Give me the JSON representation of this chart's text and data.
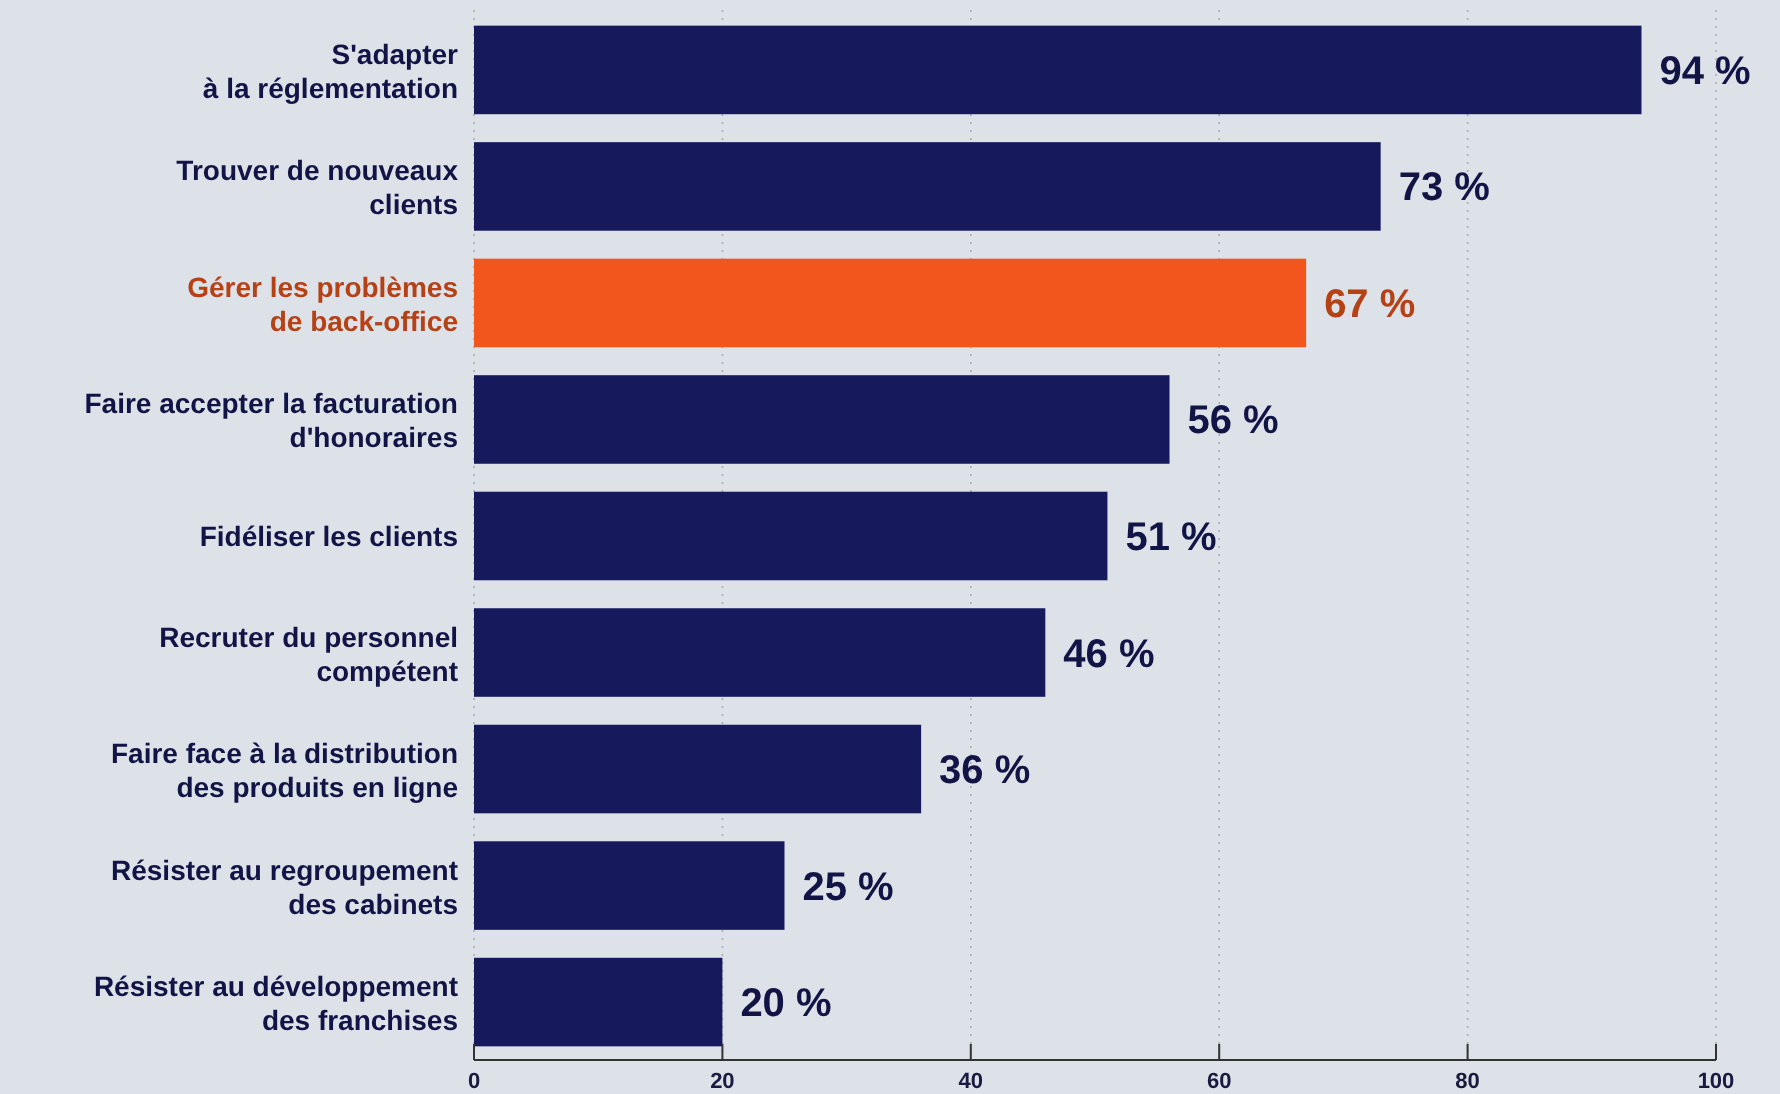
{
  "chart_data": {
    "type": "bar",
    "orientation": "horizontal",
    "categories": [
      "S'adapter\nà la réglementation",
      "Trouver de nouveaux\nclients",
      "Gérer les problèmes\nde back-office",
      "Faire accepter la facturation\nd'honoraires",
      "Fidéliser les clients",
      "Recruter du personnel\ncompétent",
      "Faire face à la distribution\ndes produits en ligne",
      "Résister au regroupement\ndes cabinets",
      "Résister au développement\ndes franchises"
    ],
    "values": [
      94,
      73,
      67,
      56,
      51,
      46,
      36,
      25,
      20
    ],
    "colors": [
      "#161a5c",
      "#161a5c",
      "#f2561c",
      "#161a5c",
      "#161a5c",
      "#161a5c",
      "#161a5c",
      "#161a5c",
      "#161a5c"
    ],
    "value_labels": [
      "94 %",
      "73 %",
      "67 %",
      "56 %",
      "51 %",
      "46 %",
      "36 %",
      "25 %",
      "20 %"
    ],
    "xlim": [
      0,
      100
    ],
    "xticks": [
      0,
      20,
      40,
      60,
      80,
      100
    ],
    "grid": "x"
  }
}
